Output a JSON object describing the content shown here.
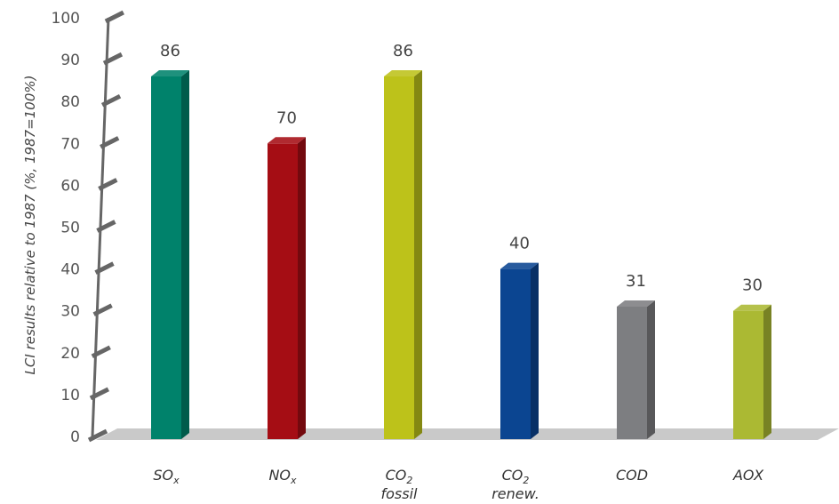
{
  "chart_data": {
    "type": "bar",
    "categories": [
      {
        "main": "SO",
        "sub": "x",
        "second_line": ""
      },
      {
        "main": "NO",
        "sub": "x",
        "second_line": ""
      },
      {
        "main": "CO",
        "sub": "2",
        "second_line": "fossil"
      },
      {
        "main": "CO",
        "sub": "2",
        "second_line": "renew."
      },
      {
        "main": "COD",
        "sub": "",
        "second_line": ""
      },
      {
        "main": "AOX",
        "sub": "",
        "second_line": ""
      }
    ],
    "values": [
      86,
      70,
      86,
      40,
      31,
      30
    ],
    "value_labels": [
      "86",
      "70",
      "86",
      "40",
      "31",
      "30"
    ],
    "colors": [
      "#00826b",
      "#a50d14",
      "#bdc21a",
      "#0b4591",
      "#7d7e81",
      "#abb933"
    ],
    "title": "",
    "xlabel": "",
    "ylabel": "LCI results relative to 1987 (%, 1987=100%)",
    "ylim": [
      0,
      100
    ],
    "yticks": [
      "0",
      "10",
      "20",
      "30",
      "40",
      "50",
      "60",
      "70",
      "80",
      "90",
      "100"
    ],
    "grid": false,
    "legend": "none"
  }
}
